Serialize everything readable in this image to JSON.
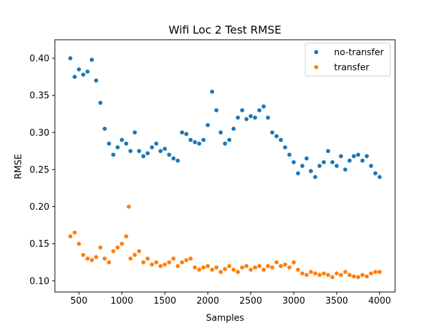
{
  "chart_data": {
    "type": "scatter",
    "title": "Wifi Loc 2 Test RMSE",
    "xlabel": "Samples",
    "ylabel": "RMSE",
    "xlim": [
      220,
      4180
    ],
    "ylim": [
      0.085,
      0.425
    ],
    "xticks": [
      500,
      1000,
      1500,
      2000,
      2500,
      3000,
      3500,
      4000
    ],
    "yticks": [
      0.1,
      0.15,
      0.2,
      0.25,
      0.3,
      0.35,
      0.4
    ],
    "grid": false,
    "legend_position": "top-right",
    "series": [
      {
        "name": "no-transfer",
        "color": "#1f77b4",
        "x": [
          400,
          450,
          500,
          550,
          600,
          650,
          700,
          750,
          800,
          850,
          900,
          950,
          1000,
          1050,
          1100,
          1150,
          1200,
          1250,
          1300,
          1350,
          1400,
          1450,
          1500,
          1550,
          1600,
          1650,
          1700,
          1750,
          1800,
          1850,
          1900,
          1950,
          2000,
          2050,
          2100,
          2150,
          2200,
          2250,
          2300,
          2350,
          2400,
          2450,
          2500,
          2550,
          2600,
          2650,
          2700,
          2750,
          2800,
          2850,
          2900,
          2950,
          3000,
          3050,
          3100,
          3150,
          3200,
          3250,
          3300,
          3350,
          3400,
          3450,
          3500,
          3550,
          3600,
          3650,
          3700,
          3750,
          3800,
          3850,
          3900,
          3950,
          4000
        ],
        "y": [
          0.4,
          0.375,
          0.385,
          0.378,
          0.382,
          0.398,
          0.37,
          0.34,
          0.305,
          0.285,
          0.27,
          0.28,
          0.29,
          0.285,
          0.275,
          0.3,
          0.275,
          0.268,
          0.272,
          0.28,
          0.285,
          0.275,
          0.278,
          0.27,
          0.265,
          0.262,
          0.3,
          0.298,
          0.29,
          0.287,
          0.285,
          0.29,
          0.31,
          0.355,
          0.33,
          0.3,
          0.285,
          0.29,
          0.305,
          0.32,
          0.33,
          0.318,
          0.322,
          0.32,
          0.33,
          0.335,
          0.32,
          0.3,
          0.295,
          0.29,
          0.28,
          0.27,
          0.26,
          0.245,
          0.255,
          0.265,
          0.248,
          0.24,
          0.255,
          0.26,
          0.275,
          0.26,
          0.255,
          0.268,
          0.25,
          0.262,
          0.268,
          0.27,
          0.262,
          0.268,
          0.255,
          0.245,
          0.24
        ]
      },
      {
        "name": "transfer",
        "color": "#ff7f0e",
        "x": [
          400,
          450,
          500,
          550,
          600,
          650,
          700,
          750,
          800,
          850,
          900,
          950,
          1000,
          1050,
          1080,
          1100,
          1150,
          1200,
          1250,
          1300,
          1350,
          1400,
          1450,
          1500,
          1550,
          1600,
          1650,
          1700,
          1750,
          1800,
          1850,
          1900,
          1950,
          2000,
          2050,
          2100,
          2150,
          2200,
          2250,
          2300,
          2350,
          2400,
          2450,
          2500,
          2550,
          2600,
          2650,
          2700,
          2750,
          2800,
          2850,
          2900,
          2950,
          3000,
          3050,
          3100,
          3150,
          3200,
          3250,
          3300,
          3350,
          3400,
          3450,
          3500,
          3550,
          3600,
          3650,
          3700,
          3750,
          3800,
          3850,
          3900,
          3950,
          4000
        ],
        "y": [
          0.16,
          0.165,
          0.15,
          0.135,
          0.13,
          0.128,
          0.132,
          0.145,
          0.13,
          0.125,
          0.14,
          0.145,
          0.15,
          0.16,
          0.2,
          0.13,
          0.135,
          0.14,
          0.125,
          0.13,
          0.122,
          0.125,
          0.12,
          0.122,
          0.125,
          0.13,
          0.12,
          0.125,
          0.128,
          0.13,
          0.118,
          0.115,
          0.118,
          0.12,
          0.115,
          0.118,
          0.112,
          0.116,
          0.12,
          0.115,
          0.112,
          0.118,
          0.12,
          0.115,
          0.118,
          0.12,
          0.115,
          0.12,
          0.118,
          0.125,
          0.12,
          0.122,
          0.118,
          0.125,
          0.115,
          0.11,
          0.108,
          0.112,
          0.11,
          0.108,
          0.11,
          0.108,
          0.105,
          0.11,
          0.108,
          0.112,
          0.108,
          0.106,
          0.105,
          0.108,
          0.106,
          0.11,
          0.112,
          0.112
        ]
      }
    ]
  }
}
